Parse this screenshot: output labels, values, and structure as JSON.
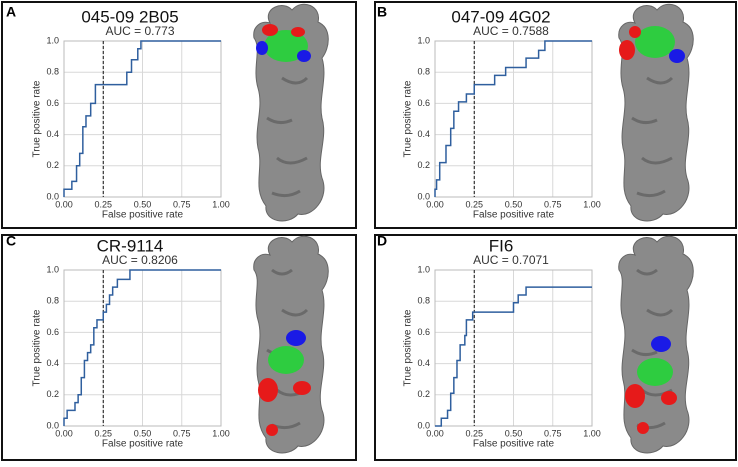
{
  "chart_data": [
    {
      "type": "line",
      "panel": "A",
      "title": "045-09 2B05",
      "subtitle": "AUC = 0.773",
      "xlabel": "False positive rate",
      "ylabel": "True positive rate",
      "color": "#2f5f9e",
      "threshold": 0.25,
      "grid": true,
      "x": [
        0,
        0,
        0.05,
        0.05,
        0.08,
        0.08,
        0.1,
        0.1,
        0.12,
        0.12,
        0.14,
        0.14,
        0.17,
        0.17,
        0.2,
        0.2,
        0.4,
        0.4,
        0.43,
        0.43,
        0.47,
        0.47,
        0.49,
        0.49,
        1
      ],
      "values": [
        0,
        0.05,
        0.05,
        0.1,
        0.1,
        0.2,
        0.2,
        0.28,
        0.28,
        0.45,
        0.45,
        0.52,
        0.52,
        0.6,
        0.6,
        0.72,
        0.72,
        0.8,
        0.8,
        0.88,
        0.88,
        0.95,
        0.95,
        1,
        1
      ],
      "xlim": [
        0,
        1
      ],
      "ylim": [
        0,
        1
      ],
      "xticks": [
        {
          "value": 0,
          "label": "0.00"
        },
        0.25,
        {
          "value": 0.5,
          "label": "0.50"
        },
        0.75,
        {
          "value": 1,
          "label": "1.00"
        }
      ],
      "yticks": [
        {
          "value": 0,
          "label": "0.0"
        },
        0.2,
        0.4,
        0.6,
        0.8,
        {
          "value": 1,
          "label": "1.0"
        }
      ]
    },
    {
      "type": "line",
      "panel": "B",
      "title": "047-09 4G02",
      "subtitle": "AUC = 0.7588",
      "xlabel": "False positive rate",
      "ylabel": "True positive rate",
      "color": "#2f5f9e",
      "threshold": 0.25,
      "grid": true,
      "x": [
        0,
        0,
        0.01,
        0.01,
        0.03,
        0.03,
        0.07,
        0.07,
        0.1,
        0.1,
        0.12,
        0.12,
        0.15,
        0.15,
        0.2,
        0.2,
        0.25,
        0.25,
        0.38,
        0.38,
        0.45,
        0.45,
        0.58,
        0.58,
        0.66,
        0.66,
        0.7,
        0.7,
        1
      ],
      "values": [
        0,
        0.05,
        0.05,
        0.11,
        0.11,
        0.22,
        0.22,
        0.33,
        0.33,
        0.44,
        0.44,
        0.55,
        0.55,
        0.61,
        0.61,
        0.66,
        0.66,
        0.72,
        0.72,
        0.78,
        0.78,
        0.83,
        0.83,
        0.89,
        0.89,
        0.94,
        0.94,
        1,
        1
      ],
      "xlim": [
        0,
        1
      ],
      "ylim": [
        0,
        1
      ],
      "xticks": [
        {
          "value": 0,
          "label": "0.00"
        },
        0.25,
        {
          "value": 0.5,
          "label": "0.50"
        },
        0.75,
        {
          "value": 1,
          "label": "1.00"
        }
      ],
      "yticks": [
        {
          "value": 0,
          "label": "0.0"
        },
        0.2,
        0.4,
        0.6,
        0.8,
        {
          "value": 1,
          "label": "1.0"
        }
      ]
    },
    {
      "type": "line",
      "panel": "C",
      "title": "CR-9114",
      "subtitle": "AUC = 0.8206",
      "xlabel": "False positive rate",
      "ylabel": "True positive rate",
      "color": "#2f5f9e",
      "threshold": 0.25,
      "grid": true,
      "x": [
        0,
        0,
        0.02,
        0.02,
        0.07,
        0.07,
        0.09,
        0.09,
        0.11,
        0.11,
        0.13,
        0.13,
        0.15,
        0.15,
        0.17,
        0.17,
        0.19,
        0.19,
        0.21,
        0.21,
        0.25,
        0.25,
        0.27,
        0.27,
        0.29,
        0.29,
        0.31,
        0.31,
        0.34,
        0.34,
        0.42,
        0.42,
        1
      ],
      "values": [
        0,
        0.05,
        0.05,
        0.1,
        0.1,
        0.15,
        0.15,
        0.2,
        0.2,
        0.31,
        0.31,
        0.42,
        0.42,
        0.47,
        0.47,
        0.52,
        0.52,
        0.63,
        0.63,
        0.68,
        0.68,
        0.73,
        0.73,
        0.78,
        0.78,
        0.84,
        0.84,
        0.89,
        0.89,
        0.94,
        0.94,
        1,
        1
      ],
      "xlim": [
        0,
        1
      ],
      "ylim": [
        0,
        1
      ],
      "xticks": [
        {
          "value": 0,
          "label": "0.00"
        },
        0.25,
        {
          "value": 0.5,
          "label": "0.50"
        },
        0.75,
        {
          "value": 1,
          "label": "1.00"
        }
      ],
      "yticks": [
        {
          "value": 0,
          "label": "0.0"
        },
        0.2,
        0.4,
        0.6,
        0.8,
        {
          "value": 1,
          "label": "1.0"
        }
      ]
    },
    {
      "type": "line",
      "panel": "D",
      "title": "FI6",
      "subtitle": "AUC = 0.7071",
      "xlabel": "False positive rate",
      "ylabel": "True positive rate",
      "color": "#2f5f9e",
      "threshold": 0.25,
      "grid": true,
      "x": [
        0,
        0.04,
        0.04,
        0.08,
        0.08,
        0.1,
        0.1,
        0.12,
        0.12,
        0.14,
        0.14,
        0.16,
        0.16,
        0.19,
        0.19,
        0.2,
        0.2,
        0.24,
        0.24,
        0.5,
        0.5,
        0.53,
        0.53,
        0.58,
        0.58,
        1
      ],
      "values": [
        0,
        0,
        0.05,
        0.05,
        0.1,
        0.1,
        0.21,
        0.21,
        0.31,
        0.31,
        0.42,
        0.42,
        0.52,
        0.52,
        0.58,
        0.58,
        0.68,
        0.68,
        0.73,
        0.73,
        0.79,
        0.79,
        0.84,
        0.84,
        0.89,
        0.89
      ],
      "xlim": [
        0,
        1
      ],
      "ylim": [
        0,
        1
      ],
      "xticks": [
        {
          "value": 0,
          "label": "0.00"
        },
        0.25,
        {
          "value": 0.5,
          "label": "0.50"
        },
        0.75,
        {
          "value": 1,
          "label": "1.00"
        }
      ],
      "yticks": [
        {
          "value": 0,
          "label": "0.0"
        },
        0.2,
        0.4,
        0.6,
        0.8,
        {
          "value": 1,
          "label": "1.0"
        }
      ]
    }
  ]
}
